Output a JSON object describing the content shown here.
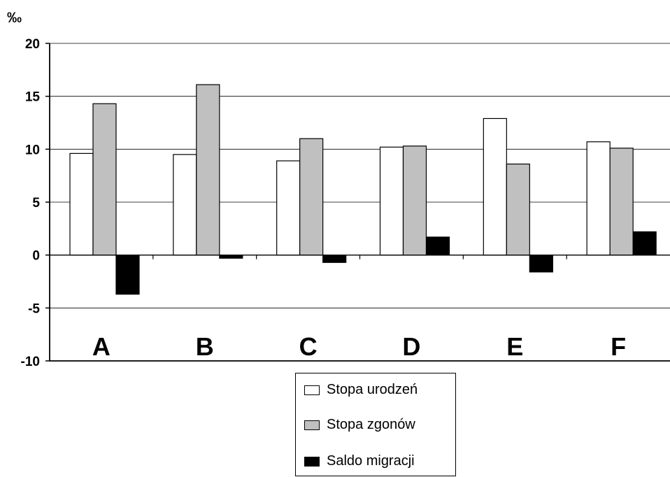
{
  "chart_data": {
    "type": "bar",
    "unit_label": "‰",
    "categories": [
      "A",
      "B",
      "C",
      "D",
      "E",
      "F"
    ],
    "series": [
      {
        "name": "Stopa urodzeń",
        "color": "#ffffff",
        "values": [
          9.6,
          9.5,
          8.9,
          10.2,
          12.9,
          10.7
        ]
      },
      {
        "name": "Stopa zgonów",
        "color": "#c0c0c0",
        "values": [
          14.3,
          16.1,
          11.0,
          10.3,
          8.6,
          10.1
        ]
      },
      {
        "name": "Saldo migracji",
        "color": "#000000",
        "values": [
          -3.7,
          -0.3,
          -0.7,
          1.7,
          -1.6,
          2.2
        ]
      }
    ],
    "ylim": [
      -10,
      20
    ],
    "yticks": [
      -10,
      -5,
      0,
      5,
      10,
      15,
      20
    ],
    "grid": true,
    "legend_position": "bottom-right"
  }
}
